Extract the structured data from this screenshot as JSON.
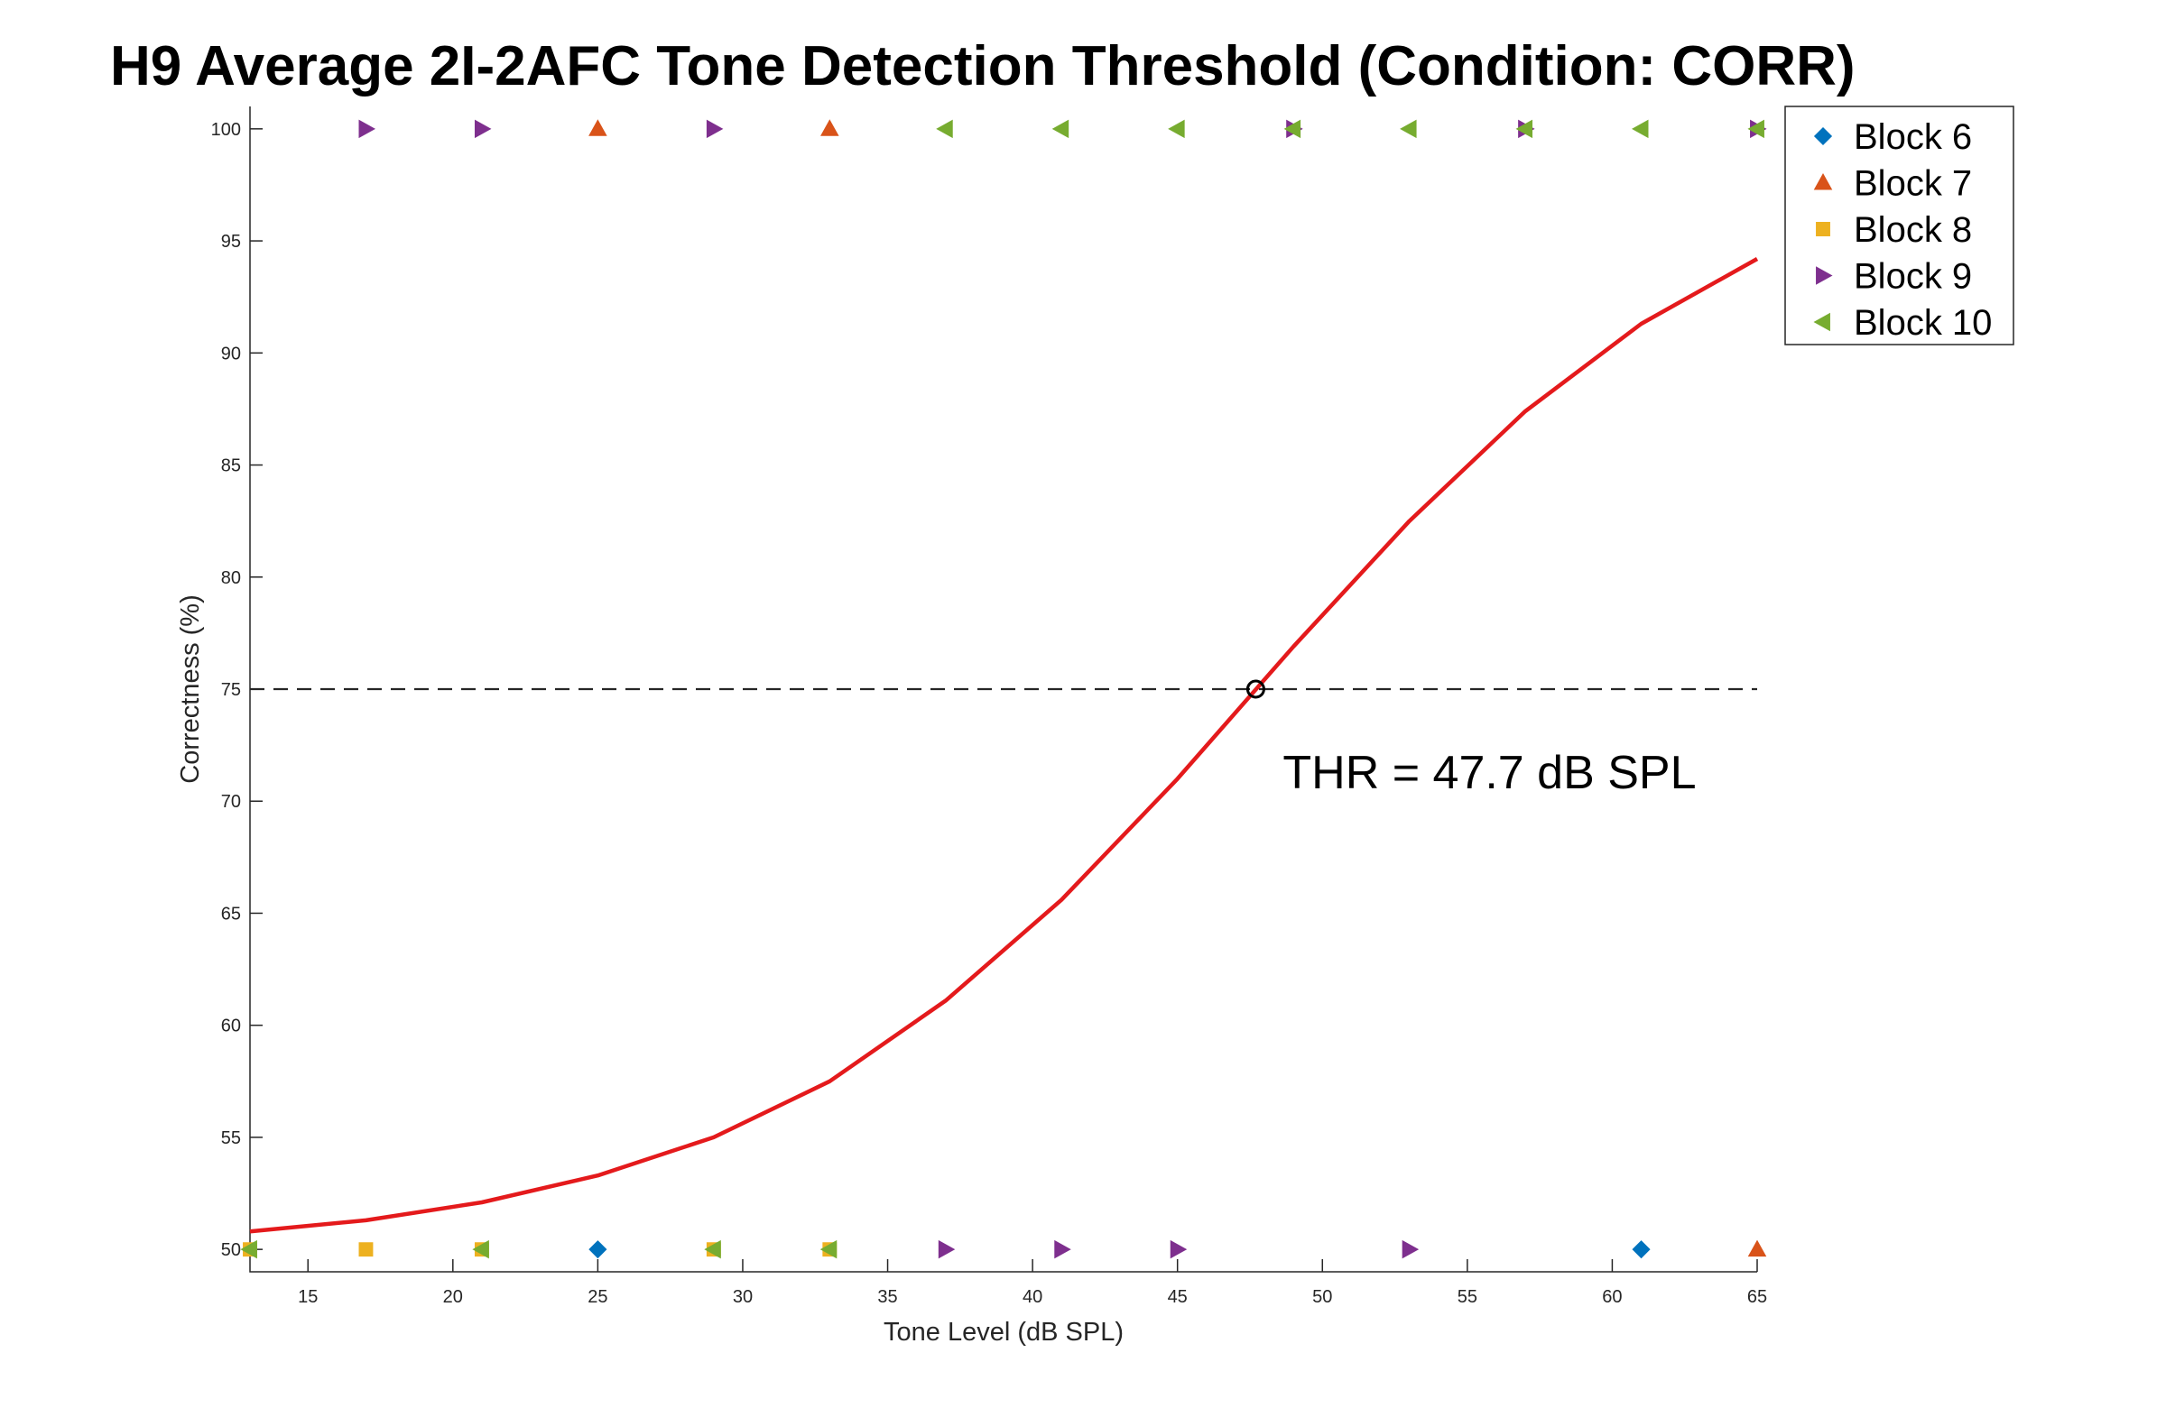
{
  "chart_data": {
    "type": "scatter",
    "title": "H9 Average 2I-2AFC Tone Detection Threshold (Condition: CORR)",
    "xlabel": "Tone Level (dB SPL)",
    "ylabel": "Correctness (%)",
    "xlim": [
      13,
      65
    ],
    "ylim": [
      49,
      101
    ],
    "xticks": [
      15,
      20,
      25,
      30,
      35,
      40,
      45,
      50,
      55,
      60,
      65
    ],
    "yticks": [
      50,
      55,
      60,
      65,
      70,
      75,
      80,
      85,
      90,
      95,
      100
    ],
    "grid": false,
    "legend_position": "top-right",
    "series": [
      {
        "name": "Block 6",
        "color": "#0072BD",
        "marker": "diamond",
        "x": [
          25,
          61
        ],
        "y": [
          50,
          50
        ]
      },
      {
        "name": "Block 7",
        "color": "#D95319",
        "marker": "triangle-up",
        "x": [
          25,
          33,
          65
        ],
        "y": [
          100,
          100,
          50
        ]
      },
      {
        "name": "Block 8",
        "color": "#EDB120",
        "marker": "square",
        "x": [
          13,
          17,
          21,
          29,
          33
        ],
        "y": [
          50,
          50,
          50,
          50,
          50
        ]
      },
      {
        "name": "Block 9",
        "color": "#7E2F8E",
        "marker": "triangle-right",
        "x": [
          17,
          21,
          29,
          37,
          41,
          45,
          49,
          53,
          57,
          65
        ],
        "y": [
          100,
          100,
          100,
          50,
          50,
          50,
          100,
          50,
          100,
          100
        ]
      },
      {
        "name": "Block 10",
        "color": "#77AC30",
        "marker": "triangle-left",
        "x": [
          13,
          21,
          29,
          33,
          37,
          41,
          45,
          49,
          53,
          57,
          61,
          65
        ],
        "y": [
          50,
          50,
          50,
          50,
          100,
          100,
          100,
          100,
          100,
          100,
          100,
          100
        ]
      }
    ],
    "fit_curve": {
      "color": "#E41A1C",
      "x": [
        13,
        17,
        21,
        25,
        29,
        33,
        37,
        41,
        45,
        49,
        53,
        57,
        61,
        65
      ],
      "y": [
        50.8,
        51.3,
        52.1,
        53.3,
        55.0,
        57.5,
        61.1,
        65.6,
        71.0,
        76.9,
        82.5,
        87.4,
        91.3,
        94.2
      ]
    },
    "reference_line": {
      "y": 75,
      "style": "dashed",
      "color": "#262626"
    },
    "threshold": {
      "x": 47.7,
      "y": 75,
      "label": "THR = 47.7 dB SPL"
    }
  }
}
